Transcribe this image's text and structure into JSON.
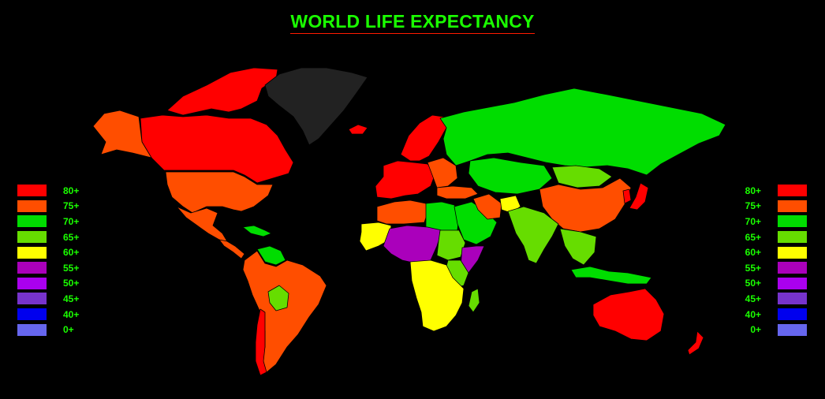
{
  "title": "WORLD LIFE EXPECTANCY",
  "legend": [
    {
      "label": "80+",
      "color": "#ff0000"
    },
    {
      "label": "75+",
      "color": "#ff4e00"
    },
    {
      "label": "70+",
      "color": "#00dd00"
    },
    {
      "label": "65+",
      "color": "#66dd00"
    },
    {
      "label": "60+",
      "color": "#ffff00"
    },
    {
      "label": "55+",
      "color": "#aa00bb"
    },
    {
      "label": "50+",
      "color": "#aa00ee"
    },
    {
      "label": "45+",
      "color": "#7733cc"
    },
    {
      "label": "40+",
      "color": "#0000ee"
    },
    {
      "label": "0+",
      "color": "#6666ee"
    }
  ],
  "no_data_color": "#222222",
  "regions": [
    {
      "id": "canada-arctic",
      "bracket": "80+"
    },
    {
      "id": "canada",
      "bracket": "80+"
    },
    {
      "id": "alaska",
      "bracket": "75+"
    },
    {
      "id": "greenland",
      "bracket": "none"
    },
    {
      "id": "usa",
      "bracket": "75+"
    },
    {
      "id": "mexico",
      "bracket": "75+"
    },
    {
      "id": "central-america",
      "bracket": "75+"
    },
    {
      "id": "caribbean",
      "bracket": "70+"
    },
    {
      "id": "venezuela",
      "bracket": "70+"
    },
    {
      "id": "south-america",
      "bracket": "75+"
    },
    {
      "id": "bolivia",
      "bracket": "65+"
    },
    {
      "id": "chile",
      "bracket": "80+"
    },
    {
      "id": "iceland",
      "bracket": "80+"
    },
    {
      "id": "scandinavia",
      "bracket": "80+"
    },
    {
      "id": "western-europe",
      "bracket": "80+"
    },
    {
      "id": "eastern-europe",
      "bracket": "75+"
    },
    {
      "id": "russia",
      "bracket": "70+"
    },
    {
      "id": "turkey",
      "bracket": "75+"
    },
    {
      "id": "north-africa",
      "bracket": "75+"
    },
    {
      "id": "libya-egypt",
      "bracket": "70+"
    },
    {
      "id": "west-africa-yellow",
      "bracket": "60+"
    },
    {
      "id": "sahel",
      "bracket": "55+"
    },
    {
      "id": "sudan",
      "bracket": "65+"
    },
    {
      "id": "horn",
      "bracket": "55+"
    },
    {
      "id": "east-africa",
      "bracket": "65+"
    },
    {
      "id": "central-southern-africa",
      "bracket": "60+"
    },
    {
      "id": "madagascar",
      "bracket": "65+"
    },
    {
      "id": "middle-east",
      "bracket": "70+"
    },
    {
      "id": "iran",
      "bracket": "75+"
    },
    {
      "id": "afghanistan",
      "bracket": "60+"
    },
    {
      "id": "central-asia",
      "bracket": "70+"
    },
    {
      "id": "mongolia",
      "bracket": "65+"
    },
    {
      "id": "china",
      "bracket": "75+"
    },
    {
      "id": "india",
      "bracket": "65+"
    },
    {
      "id": "southeast-asia",
      "bracket": "65+"
    },
    {
      "id": "japan",
      "bracket": "80+"
    },
    {
      "id": "korea",
      "bracket": "80+"
    },
    {
      "id": "indonesia",
      "bracket": "70+"
    },
    {
      "id": "australia",
      "bracket": "80+"
    },
    {
      "id": "new-zealand",
      "bracket": "80+"
    }
  ]
}
